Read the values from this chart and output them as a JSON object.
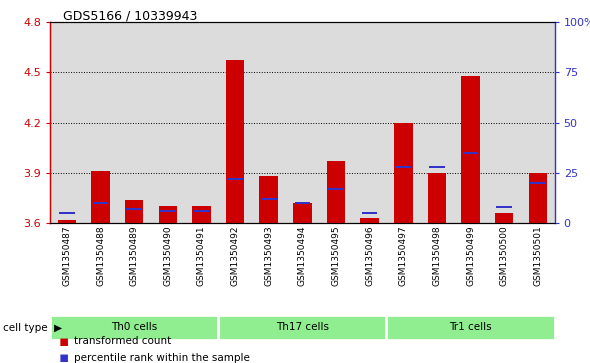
{
  "title": "GDS5166 / 10339943",
  "samples": [
    "GSM1350487",
    "GSM1350488",
    "GSM1350489",
    "GSM1350490",
    "GSM1350491",
    "GSM1350492",
    "GSM1350493",
    "GSM1350494",
    "GSM1350495",
    "GSM1350496",
    "GSM1350497",
    "GSM1350498",
    "GSM1350499",
    "GSM1350500",
    "GSM1350501"
  ],
  "red_values": [
    3.62,
    3.91,
    3.74,
    3.7,
    3.7,
    4.57,
    3.88,
    3.72,
    3.97,
    3.63,
    4.2,
    3.9,
    4.48,
    3.66,
    3.9
  ],
  "blue_percentile": [
    5,
    10,
    7,
    6,
    6,
    22,
    12,
    10,
    17,
    5,
    28,
    28,
    35,
    8,
    20
  ],
  "ylim_left": [
    3.6,
    4.8
  ],
  "ylim_right": [
    0,
    100
  ],
  "bar_color_red": "#CC0000",
  "bar_color_blue": "#3333CC",
  "bar_width": 0.55,
  "background_color": "#DCDCDC",
  "left_axis_color": "#CC0000",
  "right_axis_color": "#3333CC",
  "group_labels": [
    "Th0 cells",
    "Th17 cells",
    "Tr1 cells"
  ],
  "group_starts": [
    0,
    5,
    10
  ],
  "group_ends": [
    5,
    10,
    15
  ],
  "group_color": "#90EE90"
}
